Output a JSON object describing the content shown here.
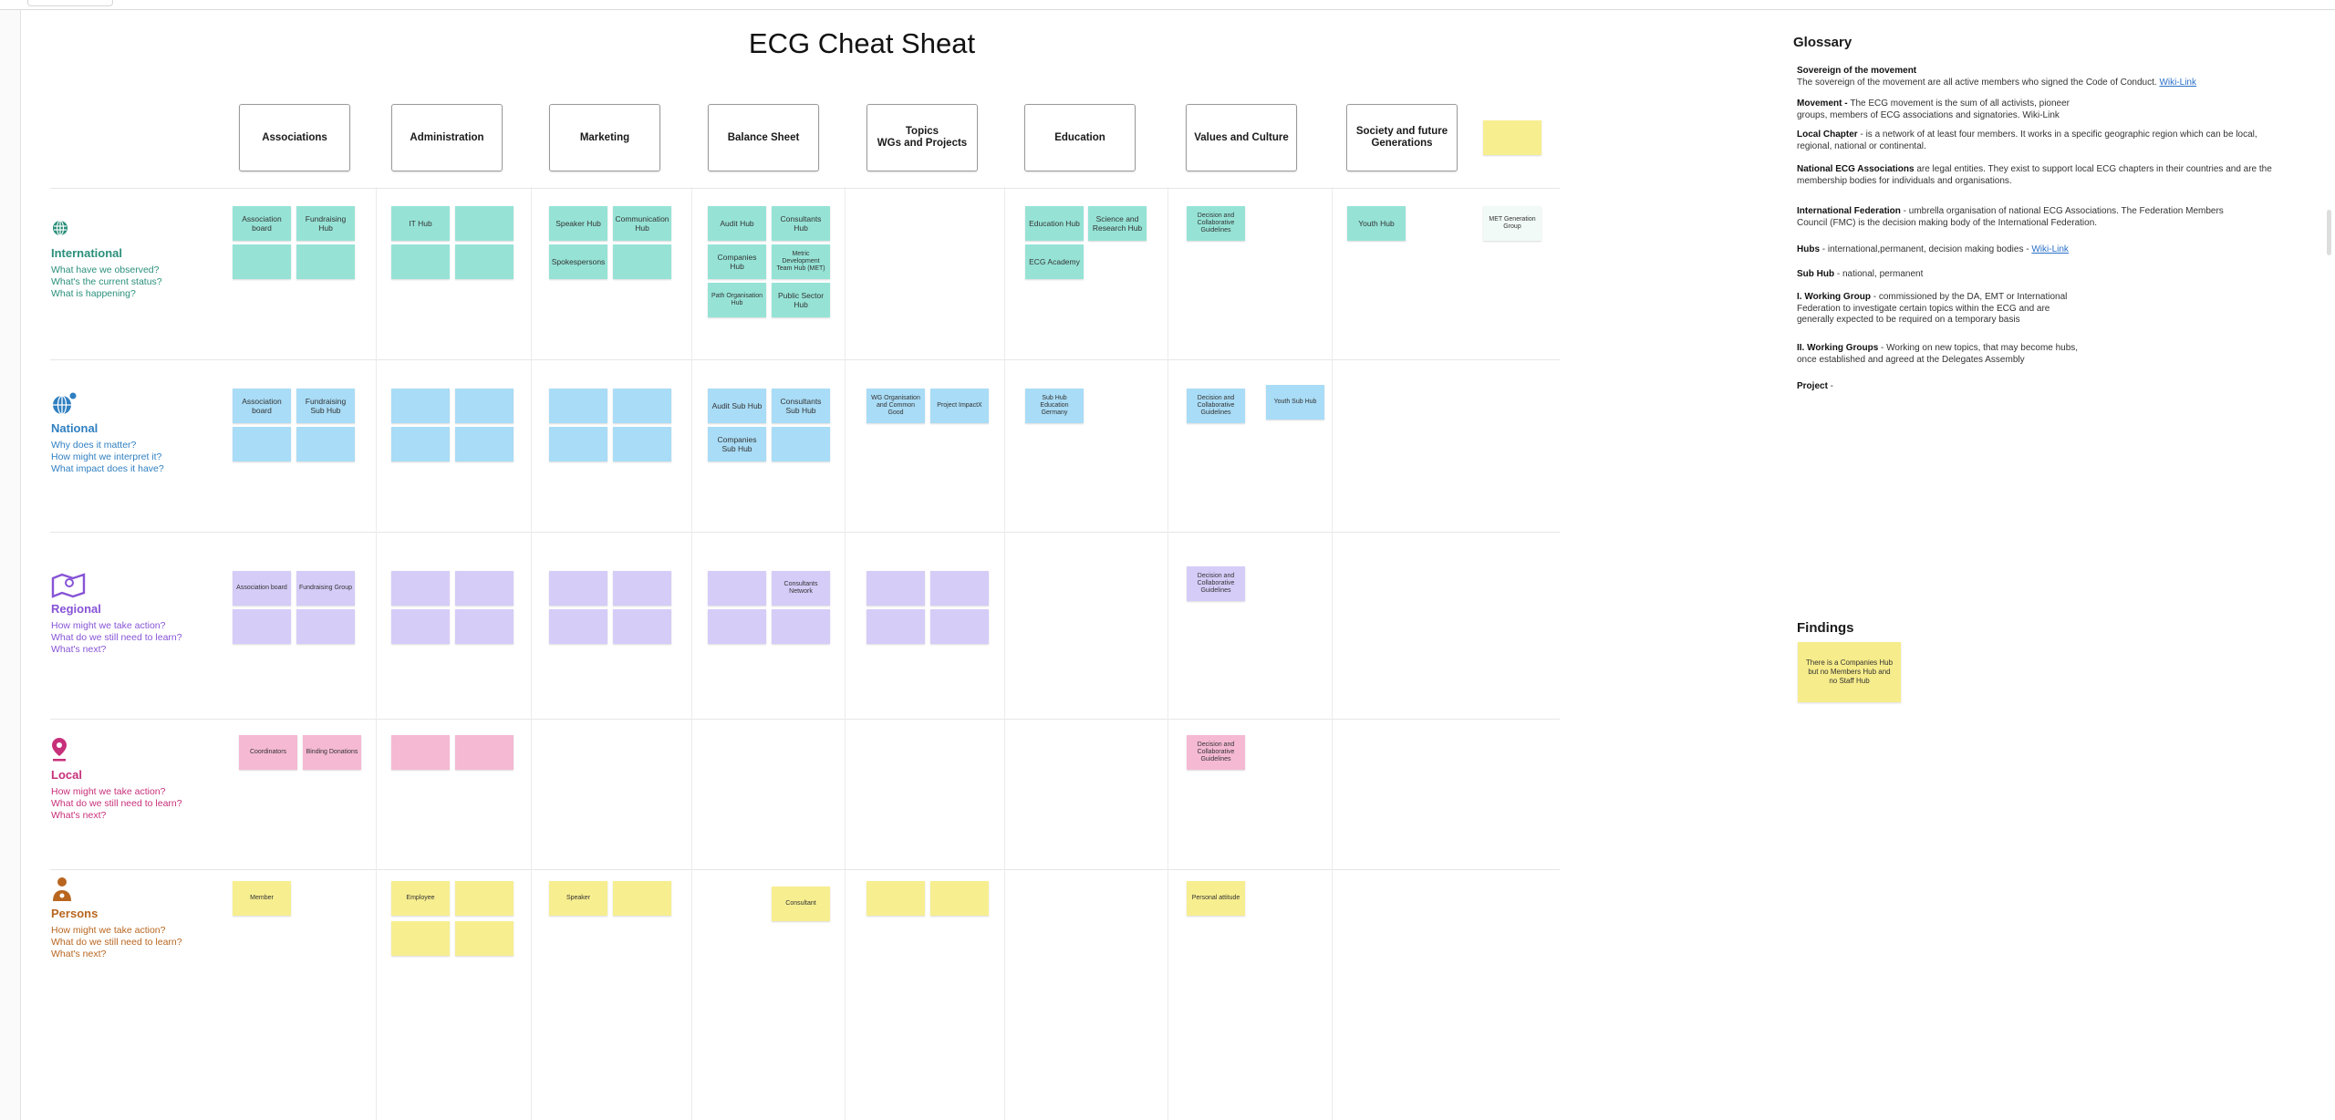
{
  "board": {
    "title": "ECG Cheat Sheat"
  },
  "colors": {
    "international": "#96e3d6",
    "national": "#a9dcf6",
    "regional": "#d6ccf8",
    "local": "#f5b9d3",
    "persons": "#f7ee90",
    "teal_text": "#2a8f7b",
    "blue_text": "#2f7fc1",
    "purple_text": "#8754d6",
    "pink_text": "#c7307a",
    "orange_text": "#b8661f"
  },
  "columns": [
    {
      "id": "associations",
      "label": "Associations"
    },
    {
      "id": "administration",
      "label": "Administration"
    },
    {
      "id": "marketing",
      "label": "Marketing"
    },
    {
      "id": "balance",
      "label": "Balance Sheet"
    },
    {
      "id": "topics",
      "label": "Topics\nWGs and Projects"
    },
    {
      "id": "education",
      "label": "Education"
    },
    {
      "id": "values",
      "label": "Values and Culture"
    },
    {
      "id": "society",
      "label": "Society and future\nGenerations"
    }
  ],
  "rows": {
    "international": {
      "icon": "globe-icon",
      "title": "International",
      "questions": [
        "What have we observed?",
        "What's the current status?",
        "What is happening?"
      ]
    },
    "national": {
      "icon": "globe-network-icon",
      "title": "National",
      "questions": [
        "Why does it matter?",
        "How might we interpret it?",
        "What impact does it have?"
      ]
    },
    "regional": {
      "icon": "map-pin-icon",
      "title": "Regional",
      "questions": [
        "How might we take action?",
        "What do we still need to learn?",
        "What's next?"
      ]
    },
    "local": {
      "icon": "location-pin-icon",
      "title": "Local",
      "questions": [
        "How might we take action?",
        "What do we still need to learn?",
        "What's next?"
      ]
    },
    "persons": {
      "icon": "person-icon",
      "title": "Persons",
      "questions": [
        "How might we take action?",
        "What do we still need to learn?",
        "What's next?"
      ]
    }
  },
  "stickies": {
    "international": {
      "assoc_board": "Association board",
      "fundraising_hub": "Fundraising Hub",
      "it_hub": "IT Hub",
      "speaker_hub": "Speaker Hub",
      "communication_hub": "Communication Hub",
      "spokespersons": "Spokespersons",
      "audit_hub": "Audit Hub",
      "consultants_hub": "Consultants Hub",
      "companies_hub": "Companies Hub",
      "metric_dev_team": "Metric Development Team Hub (MET)",
      "path_org_hub": "Path Organisation Hub",
      "public_sector_hub": "Public Sector Hub",
      "education_hub": "Education Hub",
      "science_hub": "Science and Research Hub",
      "ecg_academy": "ECG Academy",
      "decision_collab": "Decision and Collaborative Guidelines",
      "youth_hub": "Youth Hub",
      "met_generation": "MET Generation Group"
    },
    "national": {
      "assoc_board": "Association board",
      "fundraising_sub_hub": "Fundraising Sub Hub",
      "audit_sub_hub": "Audit Sub Hub",
      "consultants_sub_hub": "Consultants Sub Hub",
      "companies_sub_hub": "Companies Sub Hub",
      "wg_org": "WG Organisation and Common Good",
      "project_impact": "Project ImpactX",
      "sub_hub_education": "Sub Hub Education Germany",
      "decision_collab": "Decision and Collaborative Guidelines",
      "youth_sub_hub": "Youth Sub Hub"
    },
    "regional": {
      "assoc_board": "Association board",
      "fundraising_group": "Fundraising Group",
      "consultants_network": "Consultants Network",
      "decision_collab": "Decision and Collaborative Guidelines"
    },
    "local": {
      "coordinators": "Coordinators",
      "binding_donations": "Binding Donations",
      "decision_collab": "Decision and Collaborative Guidelines"
    },
    "persons": {
      "member": "Member",
      "employee": "Employee",
      "speaker": "Speaker",
      "consultant": "Consultant",
      "personal_attitude": "Personal attitude"
    }
  },
  "glossary": {
    "heading": "Glossary",
    "items": [
      {
        "term": "Sovereign of the movement",
        "text": "The sovereign of the movement are all active members who signed the Code of Conduct.",
        "link": "Wiki-Link"
      },
      {
        "term": "Movement - ",
        "text": "The ECG movement is the sum of all activists, pioneer groups, members of ECG associations and signatories. Wiki-Link",
        "link": ""
      },
      {
        "term": "Local Chapter",
        "text": " - is a network of at least four members. It works in a specific geographic region which can be local, regional, national or continental.",
        "link": ""
      },
      {
        "term": "National ECG Associations",
        "text": " are legal entities. They exist to support local ECG chapters in their countries and are the membership bodies for individuals and organisations.",
        "link": ""
      },
      {
        "term": "International Federation",
        "text": " - umbrella organisation of national ECG Associations. The Federation Members Council (FMC) is the decision making body of the International Federation.",
        "link": ""
      },
      {
        "term": "Hubs",
        "text": " - international,permanent, decision making bodies - ",
        "link": "Wiki-Link"
      },
      {
        "term": "Sub Hub",
        "text": " - national, permanent",
        "link": ""
      },
      {
        "term": "I.  Working Group",
        "text": " - commissioned by the DA, EMT or International Federation to investigate certain topics within the ECG and are generally expected to be required on a temporary basis",
        "link": ""
      },
      {
        "term": "II.  Working Groups",
        "text": " - Working on new topics, that may become hubs, once established and agreed at the Delegates Assembly",
        "link": ""
      },
      {
        "term": "Project",
        "text": " - ",
        "link": ""
      }
    ]
  },
  "findings": {
    "heading": "Findings",
    "note": "There is a Companies Hub but no Members Hub and no Staff Hub"
  }
}
